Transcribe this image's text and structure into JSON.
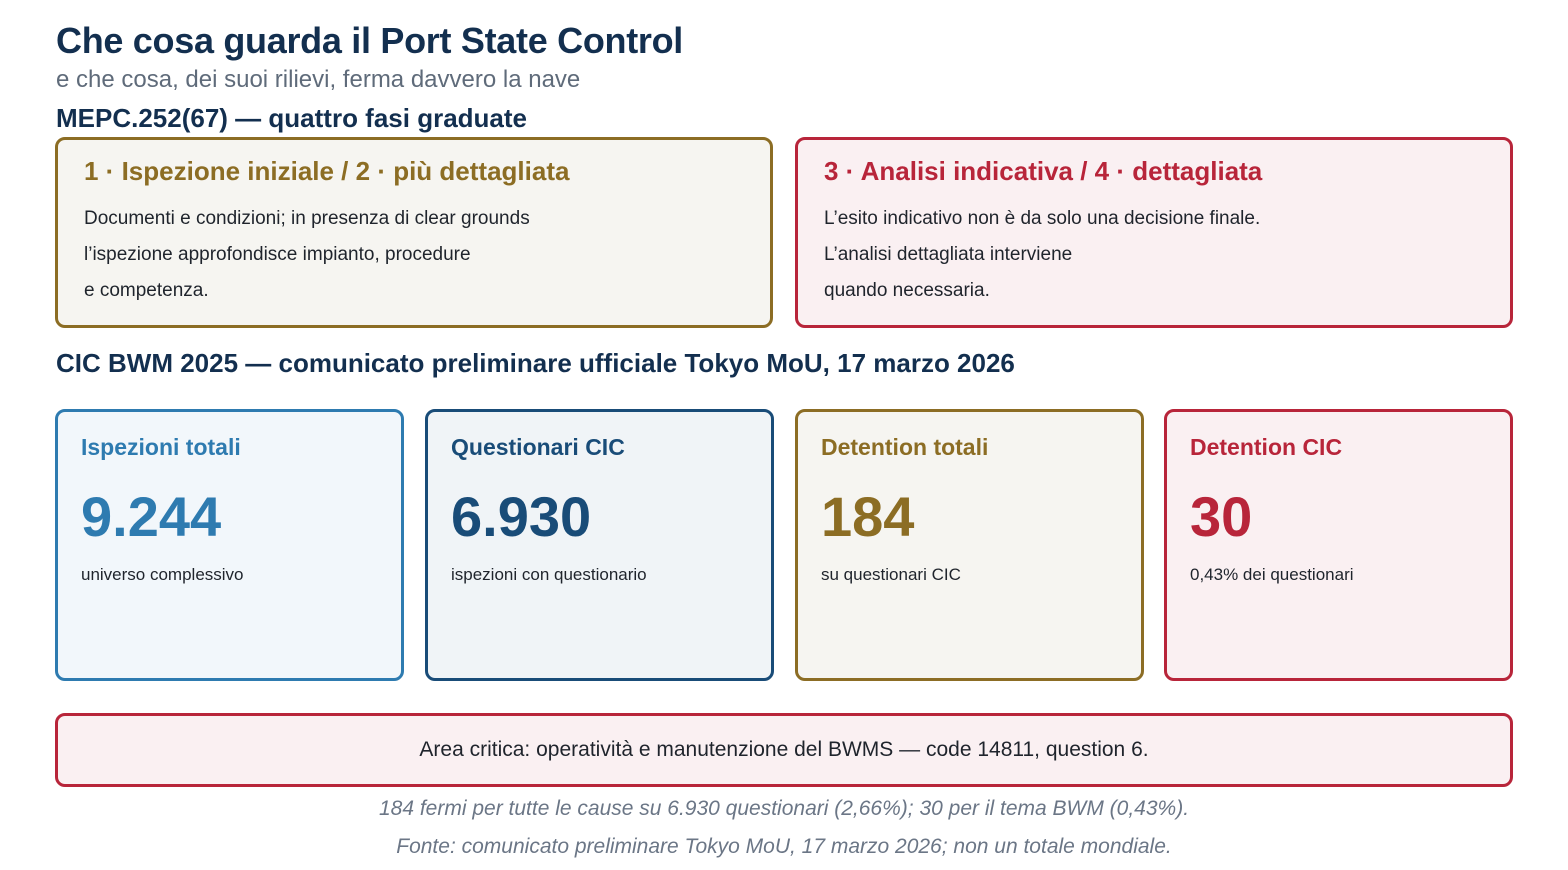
{
  "header": {
    "title": "Che cosa guarda il Port State Control",
    "subtitle": "e che cosa, dei suoi rilievi, ferma davvero la nave"
  },
  "phases_section": {
    "title": "MEPC.252(67) — quattro fasi graduate",
    "cards": [
      {
        "heading": "1 · Ispezione iniziale / 2 · più dettagliata",
        "lines": [
          "Documenti e condizioni; in presenza di clear grounds",
          "l’ispezione approfondisce impianto, procedure",
          "e competenza."
        ]
      },
      {
        "heading": "3 · Analisi indicativa / 4 · dettagliata",
        "lines": [
          "L’esito indicativo non è da solo una decisione finale.",
          "L’analisi dettagliata interviene",
          "quando necessaria."
        ]
      }
    ]
  },
  "cic_section": {
    "title": "CIC BWM 2025 — comunicato preliminare ufficiale Tokyo MoU, 17 marzo 2026",
    "stats": [
      {
        "label": "Ispezioni totali",
        "value": "9.244",
        "note": "universo complessivo"
      },
      {
        "label": "Questionari CIC",
        "value": "6.930",
        "note": "ispezioni con questionario"
      },
      {
        "label": "Detention totali",
        "value": "184",
        "note": "su questionari CIC"
      },
      {
        "label": "Detention CIC",
        "value": "30",
        "note": "0,43% dei questionari"
      }
    ]
  },
  "alert": {
    "text": "Area critica: operatività e manutenzione del BWMS — code 14811, question 6."
  },
  "footer": {
    "line1": "184 fermi per tutte le cause su 6.930 questionari (2,66%); 30 per il tema BWM (0,43%).",
    "line2": "Fonte: comunicato preliminare Tokyo MoU, 17 marzo 2026; non un totale mondiale."
  },
  "colors": {
    "navy": "#132f4f",
    "blue": "#2e7bb0",
    "dark_blue": "#194c78",
    "gold": "#8c6d24",
    "red": "#b8253a"
  }
}
